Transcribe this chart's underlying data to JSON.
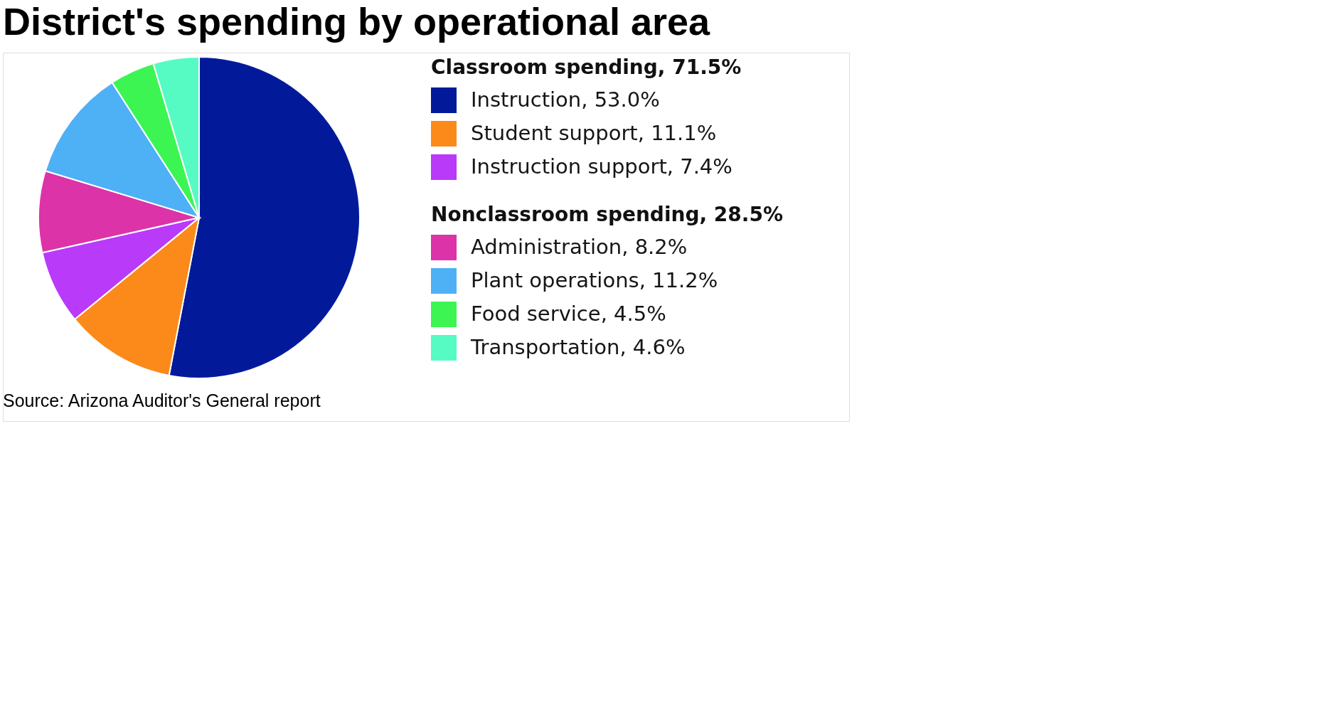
{
  "chart_data": {
    "type": "pie",
    "title": "District's spending by operational area",
    "categories": [
      "Instruction, 53.0%",
      "Student support, 11.1%",
      "Instruction support, 7.4%",
      "Administration, 8.2%",
      "Plant operations, 11.2%",
      "Food service, 4.5%",
      "Transportation, 4.6%"
    ],
    "values": [
      53.0,
      11.1,
      7.4,
      8.2,
      11.2,
      4.5,
      4.6
    ],
    "colors": [
      "#021a9a",
      "#fb8a1b",
      "#b93af8",
      "#dc33a9",
      "#4eb0f5",
      "#3cf553",
      "#56fbc3"
    ],
    "legend": "right",
    "annotations": [
      "Classroom spending, 71.5%",
      "Nonclassroom spending, 28.5%",
      "Source: Arizona Auditor's General report"
    ]
  }
}
